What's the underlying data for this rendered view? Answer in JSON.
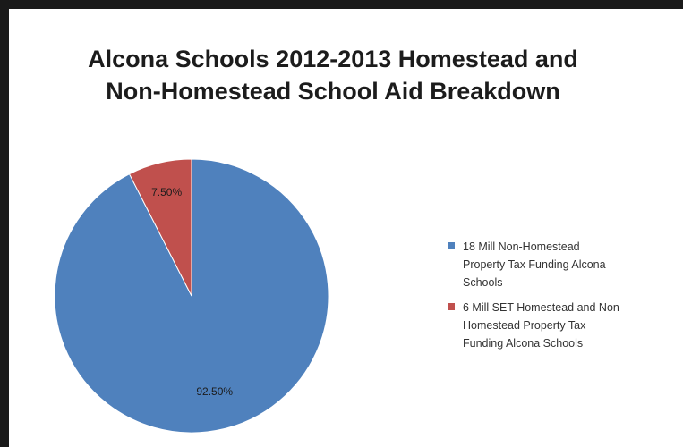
{
  "chart_data": {
    "type": "pie",
    "title": "Alcona Schools 2012-2013 Homestead and Non-Homestead School Aid Breakdown",
    "title_lines": [
      "Alcona Schools 2012-2013 Homestead and",
      "Non-Homestead School Aid Breakdown"
    ],
    "slices": [
      {
        "label": "18 Mill Non-Homestead Property Tax Funding Alcona Schools",
        "value": 92.5,
        "display": "92.50%",
        "color": "#4f81bd"
      },
      {
        "label": "6 Mill SET Homestead and Non Homestead Property Tax Funding Alcona Schools",
        "value": 7.5,
        "display": "7.50%",
        "color": "#c0504d"
      }
    ],
    "legend_position": "right",
    "legend_lines": [
      [
        "18 Mill Non-Homestead",
        "Property Tax Funding Alcona",
        "Schools"
      ],
      [
        "6 Mill SET Homestead and Non",
        "Homestead Property Tax",
        "Funding Alcona Schools"
      ]
    ]
  }
}
